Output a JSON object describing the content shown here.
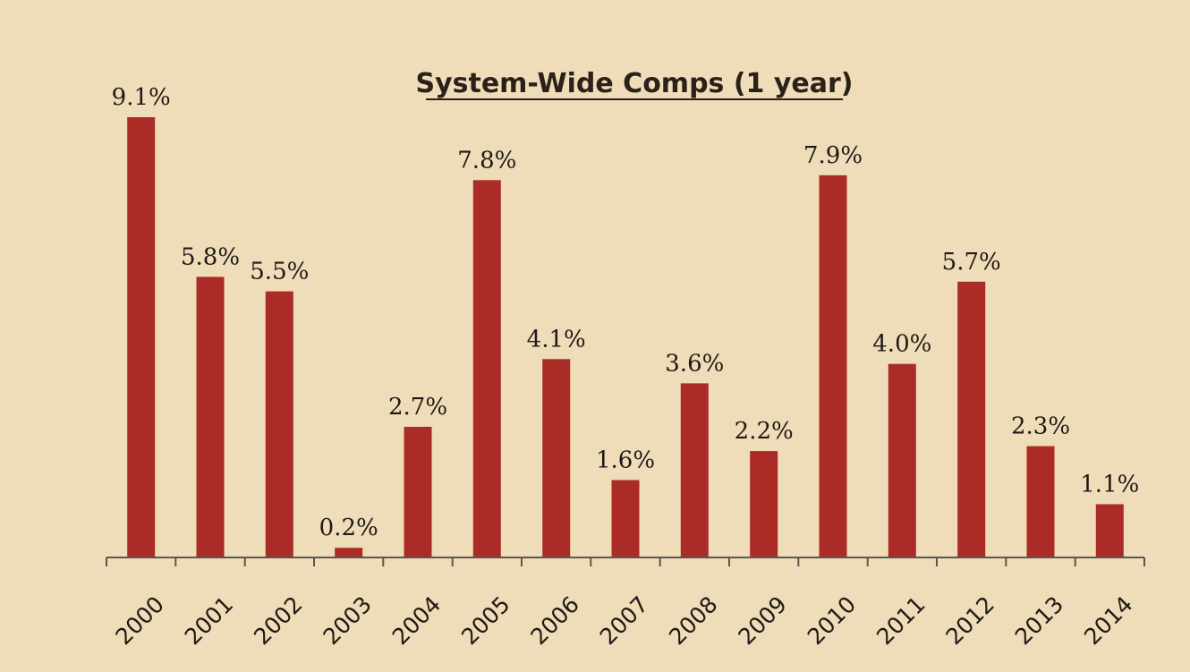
{
  "chart_data": {
    "type": "bar",
    "title": "System-Wide Comps (1 year)",
    "xlabel": "",
    "ylabel": "",
    "categories": [
      "2000",
      "2001",
      "2002",
      "2003",
      "2004",
      "2005",
      "2006",
      "2007",
      "2008",
      "2009",
      "2010",
      "2011",
      "2012",
      "2013",
      "2014"
    ],
    "values": [
      9.1,
      5.8,
      5.5,
      0.2,
      2.7,
      7.8,
      4.1,
      1.6,
      3.6,
      2.2,
      7.9,
      4.0,
      5.7,
      2.3,
      1.1
    ],
    "data_labels": [
      "9.1%",
      "5.8%",
      "5.5%",
      "0.2%",
      "2.7%",
      "7.8%",
      "4.1%",
      "1.6%",
      "3.6%",
      "2.2%",
      "7.9%",
      "4.0%",
      "5.7%",
      "2.3%",
      "1.1%"
    ],
    "ylim": [
      0,
      9.5
    ],
    "grid": false,
    "legend": "none",
    "bar_color": "#ab2b27",
    "background_color": "#efdcb8"
  }
}
